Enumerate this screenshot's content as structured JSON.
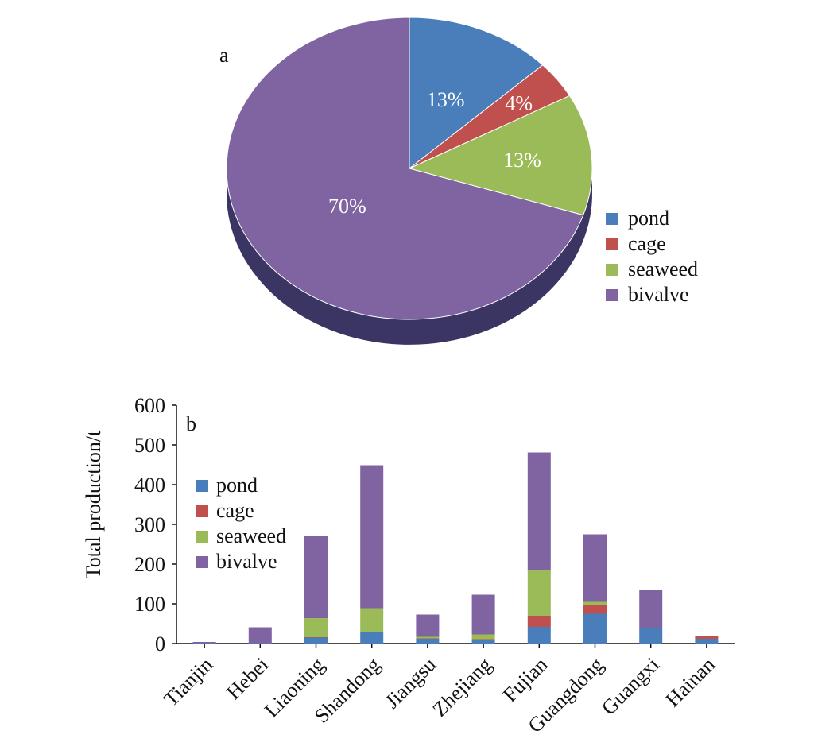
{
  "colors": {
    "pond": "#4a7ebb",
    "cage": "#c0504d",
    "seaweed": "#9bbb59",
    "bivalve": "#8064a2"
  },
  "chart_data": [
    {
      "type": "pie",
      "panel_label": "a",
      "slices": [
        {
          "name": "pond",
          "value": 13,
          "label": "13%"
        },
        {
          "name": "cage",
          "value": 4,
          "label": "4%"
        },
        {
          "name": "seaweed",
          "value": 13,
          "label": "13%"
        },
        {
          "name": "bivalve",
          "value": 70,
          "label": "70%"
        }
      ],
      "legend": [
        "pond",
        "cage",
        "seaweed",
        "bivalve"
      ],
      "legend_position": "bottom-right",
      "style": "3d"
    },
    {
      "type": "bar",
      "stacked": true,
      "panel_label": "b",
      "categories": [
        "Tianjin",
        "Hebei",
        "Liaoning",
        "Shandong",
        "Jiangsu",
        "Zhejiang",
        "Fujian",
        "Guangdong",
        "Guangxi",
        "Hainan"
      ],
      "series": [
        {
          "name": "pond",
          "values": [
            1,
            1,
            15,
            28,
            12,
            10,
            42,
            75,
            38,
            12
          ]
        },
        {
          "name": "cage",
          "values": [
            0,
            0,
            1,
            1,
            1,
            1,
            28,
            22,
            2,
            7
          ]
        },
        {
          "name": "seaweed",
          "values": [
            0,
            0,
            48,
            60,
            4,
            12,
            115,
            8,
            0,
            0
          ]
        },
        {
          "name": "bivalve",
          "values": [
            3,
            40,
            206,
            360,
            56,
            100,
            296,
            170,
            95,
            0
          ]
        }
      ],
      "ylabel": "Total production/t",
      "xlabel": "",
      "ylim": [
        0,
        600
      ],
      "yticks": [
        "0",
        "100",
        "200",
        "300",
        "400",
        "500",
        "600"
      ],
      "legend": [
        "pond",
        "cage",
        "seaweed",
        "bivalve"
      ],
      "legend_position": "top-left",
      "grid": false
    }
  ]
}
